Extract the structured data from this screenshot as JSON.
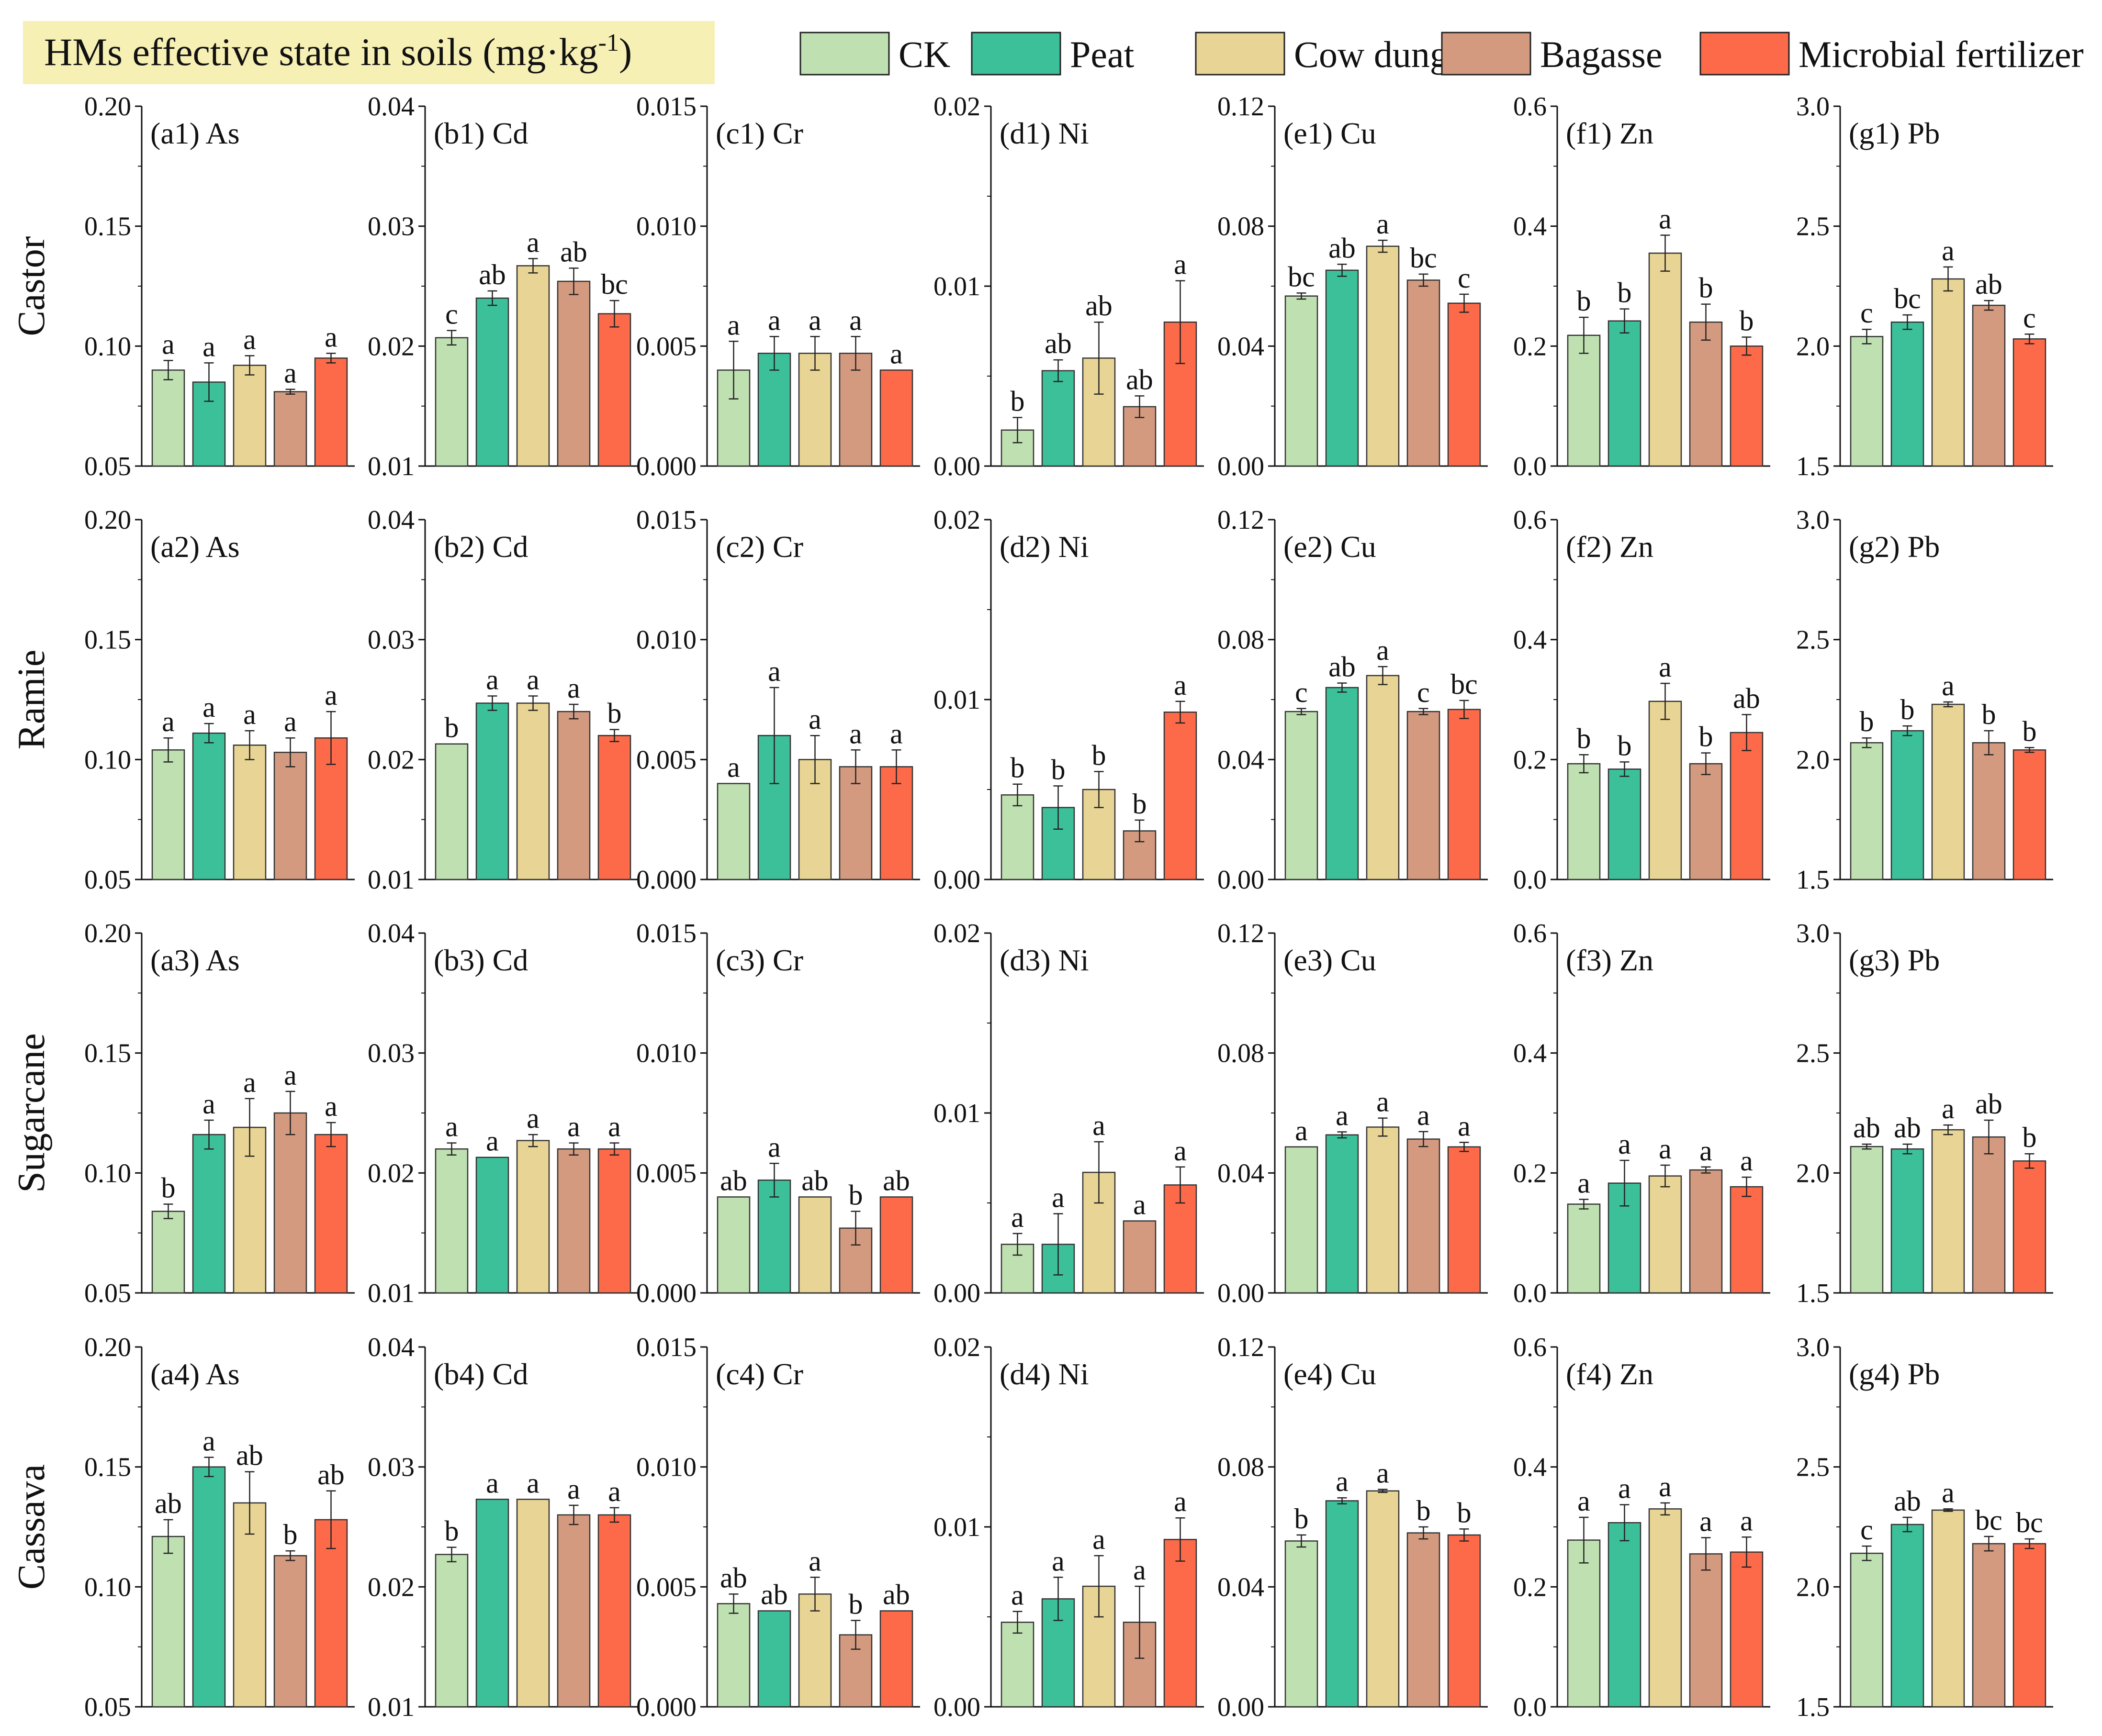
{
  "header": {
    "title": "HMs effective state in soils (mg·kg",
    "title_sup": "-1",
    "title_close": ")"
  },
  "colors": {
    "CK": "#bfe0b1",
    "Peat": "#3cc09a",
    "Cow dung": "#e8d494",
    "Bagasse": "#d49a80",
    "Microbial fertilizer": "#fc6a4a",
    "title_bg": "#f6f0b4"
  },
  "legend": [
    "CK",
    "Peat",
    "Cow dung",
    "Bagasse",
    "Microbial fertilizer"
  ],
  "rows": [
    "Castor",
    "Ramie",
    "Sugarcane",
    "Cassava"
  ],
  "chart_data": {
    "type": "bar",
    "title": "HMs effective state in soils (mg·kg-1)",
    "series_names": [
      "CK",
      "Peat",
      "Cow dung",
      "Bagasse",
      "Microbial fertilizer"
    ],
    "columns": [
      {
        "id": "a",
        "element": "As",
        "ylim": [
          0.05,
          0.2
        ],
        "ticks": [
          "0.05",
          "0.10",
          "0.15",
          "0.20"
        ]
      },
      {
        "id": "b",
        "element": "Cd",
        "ylim": [
          0.01,
          0.04
        ],
        "ticks": [
          "0.01",
          "0.02",
          "0.03",
          "0.04"
        ]
      },
      {
        "id": "c",
        "element": "Cr",
        "ylim": [
          0.0,
          0.015
        ],
        "ticks": [
          "0.000",
          "0.005",
          "0.010",
          "0.015"
        ]
      },
      {
        "id": "d",
        "element": "Ni",
        "ylim": [
          0.0,
          0.02
        ],
        "ticks": [
          "0.00",
          "0.01",
          "0.02"
        ]
      },
      {
        "id": "e",
        "element": "Cu",
        "ylim": [
          0.0,
          0.12
        ],
        "ticks": [
          "0.00",
          "0.04",
          "0.08",
          "0.12"
        ]
      },
      {
        "id": "f",
        "element": "Zn",
        "ylim": [
          0.0,
          0.6
        ],
        "ticks": [
          "0.0",
          "0.2",
          "0.4",
          "0.6"
        ]
      },
      {
        "id": "g",
        "element": "Pb",
        "ylim": [
          1.5,
          3.0
        ],
        "ticks": [
          "1.5",
          "2.0",
          "2.5",
          "3.0"
        ]
      }
    ],
    "panels": [
      [
        {
          "label": "(a1) As",
          "values": [
            0.09,
            0.085,
            0.092,
            0.081,
            0.095
          ],
          "errors": [
            0.004,
            0.008,
            0.004,
            0.001,
            0.002
          ],
          "letters": [
            "a",
            "a",
            "a",
            "a",
            "a"
          ]
        },
        {
          "label": "(b1) Cd",
          "values": [
            0.0207,
            0.024,
            0.0267,
            0.0254,
            0.0227
          ],
          "errors": [
            0.0006,
            0.0006,
            0.0006,
            0.0011,
            0.0011
          ],
          "letters": [
            "c",
            "ab",
            "a",
            "ab",
            "bc"
          ]
        },
        {
          "label": "(c1) Cr",
          "values": [
            0.004,
            0.0047,
            0.0047,
            0.0047,
            0.004
          ],
          "errors": [
            0.0012,
            0.0007,
            0.0007,
            0.0007,
            0.0
          ],
          "letters": [
            "a",
            "a",
            "a",
            "a",
            "a"
          ]
        },
        {
          "label": "(d1) Ni",
          "values": [
            0.002,
            0.0053,
            0.006,
            0.0033,
            0.008
          ],
          "errors": [
            0.0007,
            0.0006,
            0.002,
            0.0006,
            0.0023
          ],
          "letters": [
            "b",
            "ab",
            "ab",
            "ab",
            "a"
          ]
        },
        {
          "label": "(e1) Cu",
          "values": [
            0.0567,
            0.0653,
            0.0733,
            0.062,
            0.0543
          ],
          "errors": [
            0.001,
            0.002,
            0.002,
            0.002,
            0.003
          ],
          "letters": [
            "bc",
            "ab",
            "a",
            "bc",
            "c"
          ]
        },
        {
          "label": "(f1) Zn",
          "values": [
            0.218,
            0.242,
            0.355,
            0.24,
            0.2
          ],
          "errors": [
            0.03,
            0.02,
            0.03,
            0.03,
            0.015
          ],
          "letters": [
            "b",
            "b",
            "a",
            "b",
            "b"
          ]
        },
        {
          "label": "(g1) Pb",
          "values": [
            2.04,
            2.1,
            2.28,
            2.17,
            2.03
          ],
          "errors": [
            0.03,
            0.03,
            0.05,
            0.02,
            0.02
          ],
          "letters": [
            "c",
            "bc",
            "a",
            "ab",
            "c"
          ]
        }
      ],
      [
        {
          "label": "(a2) As",
          "values": [
            0.104,
            0.111,
            0.106,
            0.103,
            0.109
          ],
          "errors": [
            0.005,
            0.004,
            0.006,
            0.006,
            0.011
          ],
          "letters": [
            "a",
            "a",
            "a",
            "a",
            "a"
          ]
        },
        {
          "label": "(b2) Cd",
          "values": [
            0.0213,
            0.0247,
            0.0247,
            0.024,
            0.022
          ],
          "errors": [
            0.0,
            0.0006,
            0.0006,
            0.0006,
            0.0005
          ],
          "letters": [
            "b",
            "a",
            "a",
            "a",
            "b"
          ]
        },
        {
          "label": "(c2) Cr",
          "values": [
            0.004,
            0.006,
            0.005,
            0.0047,
            0.0047
          ],
          "errors": [
            0.0,
            0.002,
            0.001,
            0.0007,
            0.0007
          ],
          "letters": [
            "a",
            "a",
            "a",
            "a",
            "a"
          ]
        },
        {
          "label": "(d2) Ni",
          "values": [
            0.0047,
            0.004,
            0.005,
            0.0027,
            0.0093
          ],
          "errors": [
            0.0006,
            0.0012,
            0.001,
            0.0006,
            0.0006
          ],
          "letters": [
            "b",
            "b",
            "b",
            "b",
            "a"
          ]
        },
        {
          "label": "(e2) Cu",
          "values": [
            0.056,
            0.064,
            0.068,
            0.056,
            0.0567
          ],
          "errors": [
            0.001,
            0.0015,
            0.003,
            0.001,
            0.003
          ],
          "letters": [
            "c",
            "ab",
            "a",
            "c",
            "bc"
          ]
        },
        {
          "label": "(f2) Zn",
          "values": [
            0.193,
            0.184,
            0.297,
            0.193,
            0.245
          ],
          "errors": [
            0.015,
            0.012,
            0.03,
            0.018,
            0.03
          ],
          "letters": [
            "b",
            "b",
            "a",
            "b",
            "ab"
          ]
        },
        {
          "label": "(g2) Pb",
          "values": [
            2.07,
            2.12,
            2.23,
            2.07,
            2.04
          ],
          "errors": [
            0.02,
            0.02,
            0.01,
            0.05,
            0.01
          ],
          "letters": [
            "b",
            "b",
            "a",
            "b",
            "b"
          ]
        }
      ],
      [
        {
          "label": "(a3) As",
          "values": [
            0.084,
            0.116,
            0.119,
            0.125,
            0.116
          ],
          "errors": [
            0.003,
            0.006,
            0.012,
            0.009,
            0.005
          ],
          "letters": [
            "b",
            "a",
            "a",
            "a",
            "a"
          ]
        },
        {
          "label": "(b3) Cd",
          "values": [
            0.022,
            0.0213,
            0.0227,
            0.022,
            0.022
          ],
          "errors": [
            0.0005,
            0.0,
            0.0005,
            0.0005,
            0.0005
          ],
          "letters": [
            "a",
            "a",
            "a",
            "a",
            "a"
          ]
        },
        {
          "label": "(c3) Cr",
          "values": [
            0.004,
            0.0047,
            0.004,
            0.0027,
            0.004
          ],
          "errors": [
            0.0,
            0.0007,
            0.0,
            0.0007,
            0.0
          ],
          "letters": [
            "ab",
            "a",
            "ab",
            "b",
            "ab"
          ]
        },
        {
          "label": "(d3) Ni",
          "values": [
            0.0027,
            0.0027,
            0.0067,
            0.004,
            0.006
          ],
          "errors": [
            0.0006,
            0.0017,
            0.0017,
            0.0,
            0.001
          ],
          "letters": [
            "a",
            "a",
            "a",
            "a",
            "a"
          ]
        },
        {
          "label": "(e3) Cu",
          "values": [
            0.0487,
            0.0527,
            0.0553,
            0.0513,
            0.0487
          ],
          "errors": [
            0.0,
            0.001,
            0.003,
            0.0025,
            0.0015
          ],
          "letters": [
            "a",
            "a",
            "a",
            "a",
            "a"
          ]
        },
        {
          "label": "(f3) Zn",
          "values": [
            0.148,
            0.183,
            0.195,
            0.205,
            0.177
          ],
          "errors": [
            0.008,
            0.038,
            0.018,
            0.005,
            0.016
          ],
          "letters": [
            "a",
            "a",
            "a",
            "a",
            "a"
          ]
        },
        {
          "label": "(g3) Pb",
          "values": [
            2.11,
            2.1,
            2.18,
            2.15,
            2.05
          ],
          "errors": [
            0.01,
            0.02,
            0.02,
            0.07,
            0.03
          ],
          "letters": [
            "ab",
            "ab",
            "a",
            "ab",
            "b"
          ]
        }
      ],
      [
        {
          "label": "(a4) As",
          "values": [
            0.121,
            0.15,
            0.135,
            0.113,
            0.128
          ],
          "errors": [
            0.007,
            0.004,
            0.013,
            0.002,
            0.012
          ],
          "letters": [
            "ab",
            "a",
            "ab",
            "b",
            "ab"
          ]
        },
        {
          "label": "(b4) Cd",
          "values": [
            0.0227,
            0.0273,
            0.0273,
            0.026,
            0.026
          ],
          "errors": [
            0.0006,
            0.0,
            0.0,
            0.0008,
            0.0006
          ],
          "letters": [
            "b",
            "a",
            "a",
            "a",
            "a"
          ]
        },
        {
          "label": "(c4) Cr",
          "values": [
            0.0043,
            0.004,
            0.0047,
            0.003,
            0.004
          ],
          "errors": [
            0.0004,
            0.0,
            0.0007,
            0.0006,
            0.0
          ],
          "letters": [
            "ab",
            "ab",
            "a",
            "b",
            "ab"
          ]
        },
        {
          "label": "(d4) Ni",
          "values": [
            0.0047,
            0.006,
            0.0067,
            0.0047,
            0.0093
          ],
          "errors": [
            0.0006,
            0.0012,
            0.0017,
            0.002,
            0.0012
          ],
          "letters": [
            "a",
            "a",
            "a",
            "a",
            "a"
          ]
        },
        {
          "label": "(e4) Cu",
          "values": [
            0.0553,
            0.0687,
            0.072,
            0.058,
            0.0573
          ],
          "errors": [
            0.002,
            0.001,
            0.0005,
            0.002,
            0.002
          ],
          "letters": [
            "b",
            "a",
            "a",
            "b",
            "b"
          ]
        },
        {
          "label": "(f4) Zn",
          "values": [
            0.278,
            0.307,
            0.33,
            0.255,
            0.258
          ],
          "errors": [
            0.038,
            0.03,
            0.01,
            0.027,
            0.025
          ],
          "letters": [
            "a",
            "a",
            "a",
            "a",
            "a"
          ]
        },
        {
          "label": "(g4) Pb",
          "values": [
            2.14,
            2.26,
            2.32,
            2.18,
            2.18
          ],
          "errors": [
            0.03,
            0.03,
            0.005,
            0.03,
            0.02
          ],
          "letters": [
            "c",
            "ab",
            "a",
            "bc",
            "bc"
          ]
        }
      ]
    ]
  }
}
